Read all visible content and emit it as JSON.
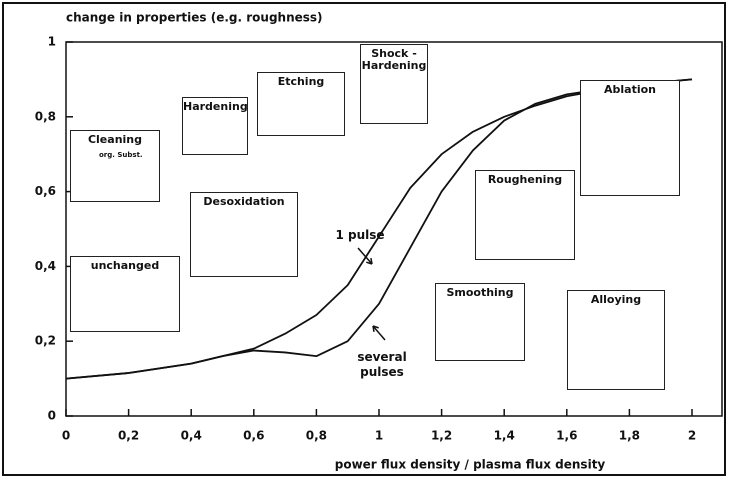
{
  "chart_data": {
    "type": "line",
    "y_label": "change in properties (e.g. roughness)",
    "x_label": "power flux density / plasma flux density",
    "x": [
      0,
      0.2,
      0.4,
      0.5,
      0.6,
      0.7,
      0.8,
      0.9,
      1.0,
      1.1,
      1.2,
      1.3,
      1.4,
      1.5,
      1.6,
      1.8,
      2.0
    ],
    "series": [
      {
        "name": "1 pulse",
        "color": "#111111",
        "values": [
          0.1,
          0.115,
          0.14,
          0.16,
          0.18,
          0.22,
          0.27,
          0.35,
          0.48,
          0.61,
          0.7,
          0.76,
          0.8,
          0.83,
          0.855,
          0.885,
          0.9
        ]
      },
      {
        "name": "several pulses",
        "color": "#111111",
        "values": [
          0.1,
          0.115,
          0.14,
          0.16,
          0.175,
          0.17,
          0.16,
          0.2,
          0.3,
          0.45,
          0.6,
          0.71,
          0.79,
          0.835,
          0.86,
          0.885,
          0.9
        ]
      }
    ],
    "xlim": [
      0,
      2
    ],
    "ylim": [
      0,
      1
    ],
    "xticks": [
      0,
      {
        "value": 0.2,
        "label": "0,2"
      },
      {
        "value": 0.4,
        "label": "0,4"
      },
      {
        "value": 0.6,
        "label": "0,6"
      },
      {
        "value": 0.8,
        "label": "0,8"
      },
      1,
      {
        "value": 1.2,
        "label": "1,2"
      },
      {
        "value": 1.4,
        "label": "1,4"
      },
      {
        "value": 1.6,
        "label": "1,6"
      },
      {
        "value": 1.8,
        "label": "1,8"
      },
      2
    ],
    "yticks": [
      0,
      {
        "value": 0.2,
        "label": "0,2"
      },
      {
        "value": 0.4,
        "label": "0,4"
      },
      {
        "value": 0.6,
        "label": "0,6"
      },
      {
        "value": 0.8,
        "label": "0,8"
      },
      1
    ],
    "annotations": [
      {
        "label": "Cleaning",
        "note": "org. Subst."
      },
      {
        "label": "unchanged"
      },
      {
        "label": "Hardening"
      },
      {
        "label": "Desoxidation"
      },
      {
        "label": "Etching"
      },
      {
        "label": "Shock - Hardening"
      },
      {
        "label": "Ablation"
      },
      {
        "label": "Roughening"
      },
      {
        "label": "Smoothing"
      },
      {
        "label": "Alloying"
      }
    ]
  }
}
